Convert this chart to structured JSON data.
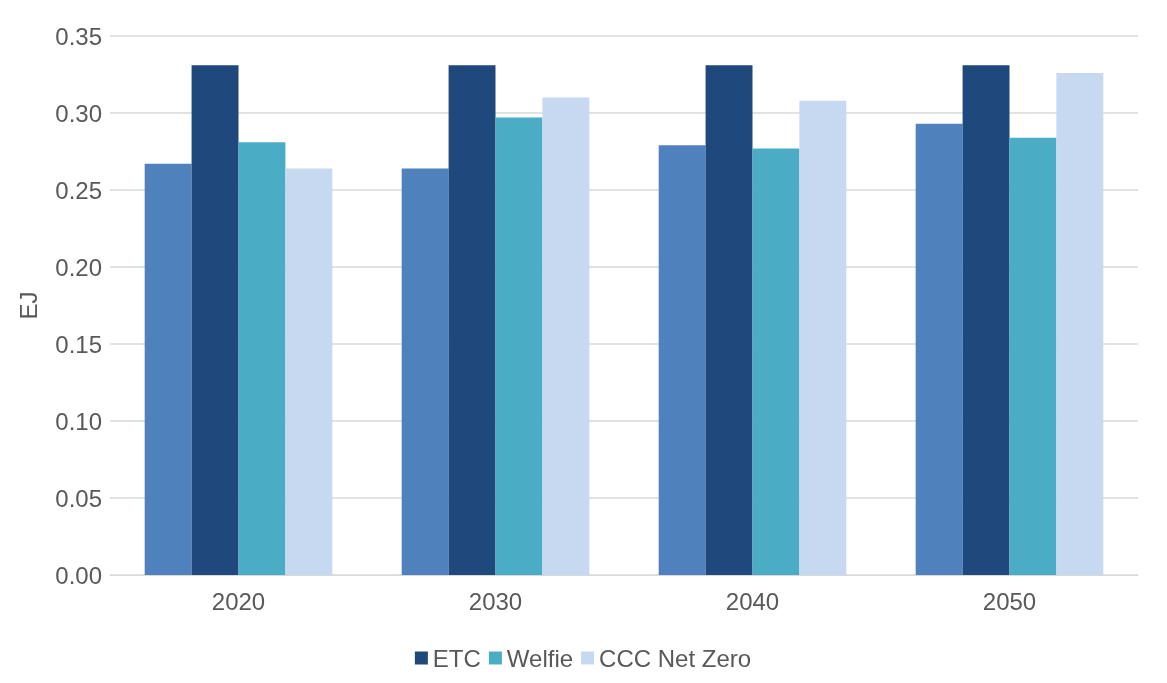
{
  "chart_data": {
    "type": "bar",
    "ylabel": "EJ",
    "categories": [
      "2020",
      "2030",
      "2040",
      "2050"
    ],
    "series": [
      {
        "color": "#4f81bd",
        "values": [
          0.267,
          0.264,
          0.279,
          0.293
        ]
      },
      {
        "name": "ETC",
        "color": "#1f497d",
        "values": [
          0.331,
          0.331,
          0.331,
          0.331
        ]
      },
      {
        "name": "Welfie",
        "color": "#4bacc6",
        "values": [
          0.281,
          0.297,
          0.277,
          0.284
        ]
      },
      {
        "name": "CCC Net Zero",
        "color": "#c6d9f0",
        "values": [
          0.264,
          0.31,
          0.308,
          0.326
        ]
      }
    ],
    "ylim": [
      0,
      0.35
    ],
    "yticks": [
      {
        "value": 0,
        "label": "0.00"
      },
      {
        "value": 0.05,
        "label": "0.05"
      },
      {
        "value": 0.1,
        "label": "0.10"
      },
      {
        "value": 0.15,
        "label": "0.15"
      },
      {
        "value": 0.2,
        "label": "0.20"
      },
      {
        "value": 0.25,
        "label": "0.25"
      },
      {
        "value": 0.3,
        "label": "0.30"
      },
      {
        "value": 0.35,
        "label": "0.35"
      }
    ],
    "grid": "y",
    "legend": "bottom"
  }
}
